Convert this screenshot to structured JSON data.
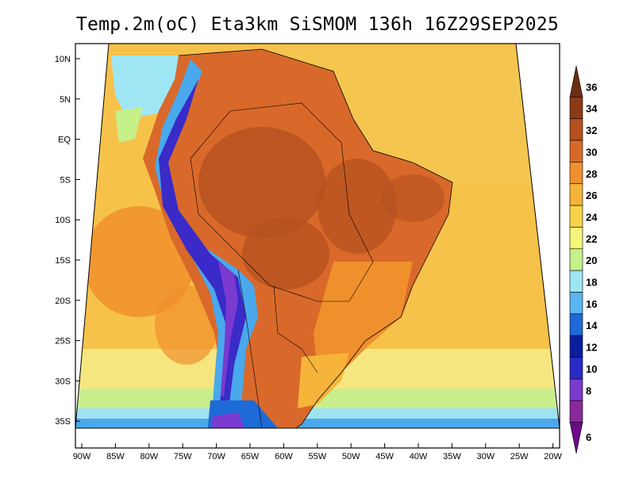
{
  "title": "Temp.2m(oC) Eta3km SiSMOM 136h 16Z29SEP2025",
  "lat_labels": [
    "10N",
    "5N",
    "EQ",
    "5S",
    "10S",
    "15S",
    "20S",
    "25S",
    "30S",
    "35S"
  ],
  "lon_labels": [
    "90W",
    "85W",
    "80W",
    "75W",
    "70W",
    "65W",
    "60W",
    "55W",
    "50W",
    "45W",
    "40W",
    "35W",
    "30W",
    "25W",
    "20W"
  ],
  "colorbar": {
    "labels": [
      "36",
      "34",
      "32",
      "30",
      "28",
      "26",
      "24",
      "22",
      "20",
      "18",
      "16",
      "14",
      "12",
      "10",
      "8",
      "6"
    ],
    "colors": [
      "#6b2d12",
      "#8b3a17",
      "#b5501f",
      "#d8692a",
      "#f0902c",
      "#f7b43a",
      "#f7d44a",
      "#f5f57a",
      "#c6f08a",
      "#9fe6f5",
      "#5ab4f0",
      "#1e6ad6",
      "#0a1fa0",
      "#2a2ac8",
      "#7a3ad0",
      "#8a2a9a",
      "#6a0a8a"
    ]
  }
}
